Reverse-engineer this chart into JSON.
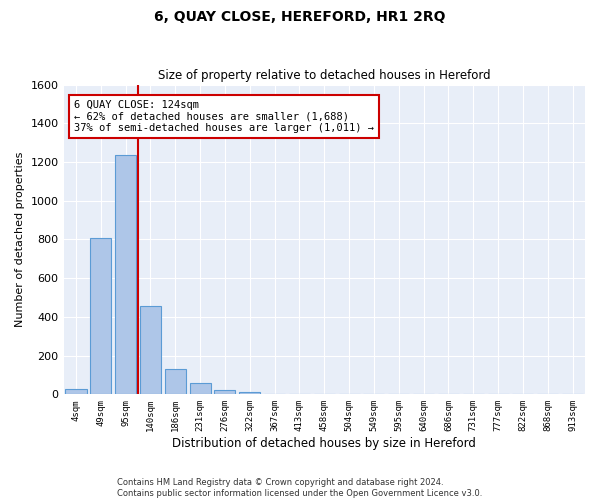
{
  "title": "6, QUAY CLOSE, HEREFORD, HR1 2RQ",
  "subtitle": "Size of property relative to detached houses in Hereford",
  "xlabel": "Distribution of detached houses by size in Hereford",
  "ylabel": "Number of detached properties",
  "bar_labels": [
    "4sqm",
    "49sqm",
    "95sqm",
    "140sqm",
    "186sqm",
    "231sqm",
    "276sqm",
    "322sqm",
    "367sqm",
    "413sqm",
    "458sqm",
    "504sqm",
    "549sqm",
    "595sqm",
    "640sqm",
    "686sqm",
    "731sqm",
    "777sqm",
    "822sqm",
    "868sqm",
    "913sqm"
  ],
  "bar_values": [
    25,
    810,
    1235,
    455,
    130,
    60,
    22,
    12,
    0,
    0,
    0,
    0,
    0,
    0,
    0,
    0,
    0,
    0,
    0,
    0,
    0
  ],
  "bar_color": "#aec6e8",
  "bar_edge_color": "#5b9bd5",
  "background_color": "#e8eef8",
  "grid_color": "#ffffff",
  "vline_color": "#cc0000",
  "annotation_line1": "6 QUAY CLOSE: 124sqm",
  "annotation_line2": "← 62% of detached houses are smaller (1,688)",
  "annotation_line3": "37% of semi-detached houses are larger (1,011) →",
  "annotation_box_color": "#ffffff",
  "annotation_box_edge": "#cc0000",
  "ylim": [
    0,
    1600
  ],
  "yticks": [
    0,
    200,
    400,
    600,
    800,
    1000,
    1200,
    1400,
    1600
  ],
  "footer1": "Contains HM Land Registry data © Crown copyright and database right 2024.",
  "footer2": "Contains public sector information licensed under the Open Government Licence v3.0."
}
